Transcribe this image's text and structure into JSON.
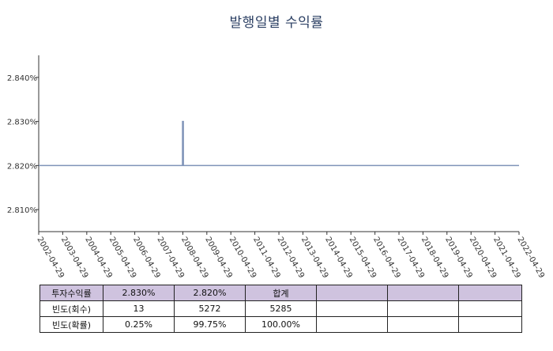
{
  "chart_data": {
    "type": "line",
    "title": "발행일별 수익률",
    "xlabel": "",
    "ylabel": "",
    "x_ticks": [
      "2002-04-29",
      "2003-04-29",
      "2004-04-29",
      "2005-04-29",
      "2006-04-29",
      "2007-04-29",
      "2008-04-29",
      "2009-04-29",
      "2010-04-29",
      "2011-04-29",
      "2012-04-29",
      "2013-04-29",
      "2014-04-29",
      "2015-04-29",
      "2016-04-29",
      "2017-04-29",
      "2018-04-29",
      "2019-04-29",
      "2020-04-29",
      "2021-04-29",
      "2022-04-29"
    ],
    "xlim": [
      "2002-04-29",
      "2022-04-29"
    ],
    "y_ticks": [
      "2.840%",
      "2.830%",
      "2.820%",
      "2.810%"
    ],
    "ylim": [
      2.805,
      2.845
    ],
    "series": [
      {
        "color": "#7f93b8",
        "x": [
          "2002-04-29",
          "2008-04-23",
          "2008-04-24",
          "2008-05-07",
          "2008-05-08",
          "2022-04-29"
        ],
        "y": [
          2.82,
          2.82,
          2.83,
          2.83,
          2.82,
          2.82
        ]
      }
    ],
    "grid": false,
    "legend": "none"
  },
  "table": {
    "rows": [
      [
        "투자수익률",
        "2.830%",
        "2.820%",
        "합계",
        "",
        "",
        ""
      ],
      [
        "빈도(회수)",
        "13",
        "5272",
        "5285",
        "",
        "",
        ""
      ],
      [
        "빈도(확률)",
        "0.25%",
        "99.75%",
        "100.00%",
        "",
        "",
        ""
      ]
    ],
    "header_color": "#cfc3df"
  }
}
